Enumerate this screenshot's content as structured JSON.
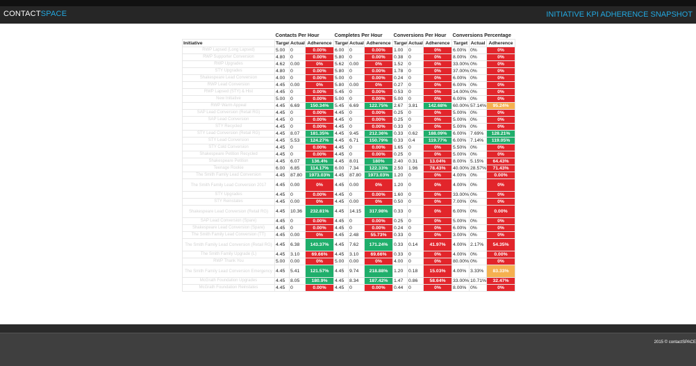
{
  "header": {
    "logo_main": "CONTACT",
    "logo_accent": "SPACE",
    "title": "INITIATIVE KPI ADHERENCE SNAPSHOT"
  },
  "colors": {
    "accent": "#23a9e1",
    "bad": "#e2252b",
    "good": "#1fae6b",
    "warn": "#f5b050"
  },
  "table": {
    "groups": [
      "Contacts Per Hour",
      "Completes Per Hour",
      "Conversions Per Hour",
      "Conversions Percentage"
    ],
    "initiative_header": "Initiative",
    "col_headers": [
      "Target",
      "Actual",
      "Adherence",
      "Target",
      "Actual",
      "Adherence",
      "Target",
      "Actual",
      "Adherence",
      "Target",
      "Actual",
      "Adherence"
    ],
    "rows": [
      {
        "name": "RWP Lapsed (Long Lapsed)",
        "tall": false,
        "cells": [
          "5.00",
          "0",
          "0.00%",
          "6.00",
          "0",
          "0.00%",
          "1.00",
          "0",
          "0%",
          "6.00%",
          "0%",
          "0%"
        ],
        "status": [
          "bad",
          "bad",
          "bad",
          "bad"
        ]
      },
      {
        "name": "RWP Supporter Conversion",
        "tall": false,
        "cells": [
          "4.80",
          "0",
          "0.00%",
          "5.80",
          "0",
          "0.00%",
          "0.38",
          "0",
          "0%",
          "8.00%",
          "0%",
          "0%"
        ],
        "status": [
          "bad",
          "bad",
          "bad",
          "bad"
        ]
      },
      {
        "name": "RWP Upgrades",
        "tall": false,
        "cells": [
          "4.62",
          "0.00",
          "0%",
          "5.62",
          "0.00",
          "0%",
          "1.52",
          "0",
          "0%",
          "33.00%",
          "0%",
          "0%"
        ],
        "status": [
          "bad",
          "bad",
          "bad",
          "bad"
        ]
      },
      {
        "name": "STY Upgrades",
        "tall": false,
        "cells": [
          "4.80",
          "0",
          "0.00%",
          "5.80",
          "0",
          "0.00%",
          "1.78",
          "0",
          "0%",
          "37.00%",
          "0%",
          "0%"
        ],
        "status": [
          "bad",
          "bad",
          "bad",
          "bad"
        ]
      },
      {
        "name": "Shakespeare Lead Conversion",
        "tall": false,
        "cells": [
          "4.00",
          "0",
          "0.00%",
          "5.00",
          "0",
          "0.00%",
          "0.24",
          "0",
          "0%",
          "6.00%",
          "0%",
          "0%"
        ],
        "status": [
          "bad",
          "bad",
          "bad",
          "bad"
        ]
      },
      {
        "name": "RWP Lead Conversion",
        "tall": false,
        "cells": [
          "4.45",
          "0.00",
          "0%",
          "5.80",
          "0.00",
          "0%",
          "0.27",
          "0",
          "0%",
          "6.00%",
          "0%",
          "0%"
        ],
        "status": [
          "bad",
          "bad",
          "bad",
          "bad"
        ]
      },
      {
        "name": "RWP Lapsed (STY) & Hist",
        "tall": false,
        "cells": [
          "4.45",
          "0",
          "0.00%",
          "5.45",
          "0",
          "0.00%",
          "0.53",
          "0",
          "0%",
          "14.00%",
          "0%",
          "0%"
        ],
        "status": [
          "bad",
          "bad",
          "bad",
          "bad"
        ]
      },
      {
        "name": "New Initiative",
        "tall": false,
        "cells": [
          "5.00",
          "0",
          "0.00%",
          "5.00",
          "0",
          "0.00%",
          "5.00",
          "0",
          "0%",
          "6.00%",
          "0%",
          "0%"
        ],
        "status": [
          "bad",
          "bad",
          "bad",
          "bad"
        ]
      },
      {
        "name": "RWP Warm Appeal",
        "tall": false,
        "cells": [
          "4.45",
          "6.69",
          "150.34%",
          "5.45",
          "6.69",
          "122.75%",
          "2.67",
          "3.81",
          "142.68%",
          "60.00%",
          "57.14%",
          "95.24%"
        ],
        "status": [
          "good",
          "good",
          "good",
          "warn"
        ]
      },
      {
        "name": "SAP Lead Conversion (Retail RG)",
        "tall": false,
        "cells": [
          "4.45",
          "0",
          "0.00%",
          "4.45",
          "0",
          "0.00%",
          "0.25",
          "0",
          "0%",
          "5.00%",
          "0%",
          "0%"
        ],
        "status": [
          "bad",
          "bad",
          "bad",
          "bad"
        ]
      },
      {
        "name": "SAP Lead Conversion",
        "tall": false,
        "cells": [
          "4.45",
          "0",
          "0.00%",
          "4.45",
          "0",
          "0.00%",
          "0.25",
          "0",
          "0%",
          "5.00%",
          "0%",
          "0%"
        ],
        "status": [
          "bad",
          "bad",
          "bad",
          "bad"
        ]
      },
      {
        "name": "STY Recycled",
        "tall": false,
        "cells": [
          "4.45",
          "0",
          "0.00%",
          "4.45",
          "0",
          "0.00%",
          "0.33",
          "0",
          "0%",
          "5.00%",
          "0%",
          "0%"
        ],
        "status": [
          "bad",
          "bad",
          "bad",
          "bad"
        ]
      },
      {
        "name": "STY Lead Conversion (Retail RG)",
        "tall": false,
        "cells": [
          "4.45",
          "8.07",
          "181.35%",
          "4.45",
          "9.45",
          "212.36%",
          "0.33",
          "0.62",
          "188.09%",
          "6.00%",
          "7.69%",
          "128.21%"
        ],
        "status": [
          "good",
          "good",
          "good",
          "good"
        ]
      },
      {
        "name": "STY Lead Conversion",
        "tall": false,
        "cells": [
          "4.45",
          "5.53",
          "124.27%",
          "4.45",
          "6.71",
          "150.79%",
          "0.33",
          "0.4",
          "119.77%",
          "6.00%",
          "7.14%",
          "119.05%"
        ],
        "status": [
          "good",
          "good",
          "good",
          "good"
        ]
      },
      {
        "name": "STY Cold Conversion",
        "tall": false,
        "cells": [
          "4.45",
          "0",
          "0.00%",
          "4.45",
          "0",
          "0.00%",
          "1.65",
          "0",
          "0%",
          "5.50%",
          "0%",
          "0%"
        ],
        "status": [
          "bad",
          "bad",
          "bad",
          "bad"
        ]
      },
      {
        "name": "Shakespeare Petition Recycled",
        "tall": false,
        "cells": [
          "4.45",
          "0",
          "0.00%",
          "4.45",
          "0",
          "0.00%",
          "0.25",
          "0",
          "0%",
          "5.00%",
          "0%",
          "0%"
        ],
        "status": [
          "bad",
          "bad",
          "bad",
          "bad"
        ]
      },
      {
        "name": "Shakespeare Petition",
        "tall": false,
        "cells": [
          "4.45",
          "6.07",
          "136.4%",
          "4.45",
          "8.01",
          "180%",
          "2.40",
          "0.31",
          "13.04%",
          "8.00%",
          "5.15%",
          "64.43%"
        ],
        "status": [
          "good",
          "good",
          "bad",
          "bad"
        ]
      },
      {
        "name": "Teenage Rookie",
        "tall": false,
        "cells": [
          "6.00",
          "6.85",
          "114.17%",
          "6.00",
          "7.34",
          "122.33%",
          "2.50",
          "1.96",
          "78.43%",
          "40.00%",
          "28.57%",
          "71.43%"
        ],
        "status": [
          "good",
          "good",
          "bad",
          "bad"
        ]
      },
      {
        "name": "The Smith Family Lead Conversion",
        "tall": false,
        "cells": [
          "4.45",
          "87.80",
          "1973.03%",
          "4.45",
          "87.80",
          "1973.03%",
          "1.20",
          "0",
          "0%",
          "4.00%",
          "0%",
          "0.00%"
        ],
        "status": [
          "good",
          "good",
          "bad",
          "bad"
        ]
      },
      {
        "name": "The Smith Family Lead Conversion 2017",
        "tall": true,
        "cells": [
          "4.45",
          "0.00",
          "0%",
          "4.45",
          "0.00",
          "0%",
          "1.20",
          "0",
          "0%",
          "4.00%",
          "0%",
          "0%"
        ],
        "status": [
          "bad",
          "bad",
          "bad",
          "bad"
        ]
      },
      {
        "name": "STY Upgrades",
        "tall": false,
        "cells": [
          "4.45",
          "0",
          "0.00%",
          "4.45",
          "0",
          "0.00%",
          "1.60",
          "0",
          "0%",
          "33.00%",
          "0%",
          "0%"
        ],
        "status": [
          "bad",
          "bad",
          "bad",
          "bad"
        ]
      },
      {
        "name": "STY Reinstates",
        "tall": false,
        "cells": [
          "4.45",
          "0.00",
          "0%",
          "4.45",
          "0.00",
          "0%",
          "0.50",
          "0",
          "0%",
          "7.00%",
          "0%",
          "0%"
        ],
        "status": [
          "bad",
          "bad",
          "bad",
          "bad"
        ]
      },
      {
        "name": "Shakespeare Lead Conversion (Retail RG)",
        "tall": true,
        "cells": [
          "4.45",
          "10.36",
          "232.81%",
          "4.45",
          "14.15",
          "317.98%",
          "0.33",
          "0",
          "0%",
          "6.00%",
          "0%",
          "0.00%"
        ],
        "status": [
          "good",
          "good",
          "bad",
          "bad"
        ]
      },
      {
        "name": "SAP Lead Conversion (Spare)",
        "tall": false,
        "cells": [
          "4.45",
          "0",
          "0.00%",
          "4.45",
          "0",
          "0.00%",
          "0.25",
          "0",
          "0%",
          "5.00%",
          "0%",
          "0%"
        ],
        "status": [
          "bad",
          "bad",
          "bad",
          "bad"
        ]
      },
      {
        "name": "Shakespeare Lead Conversion (Spare)",
        "tall": false,
        "cells": [
          "4.45",
          "0",
          "0.00%",
          "4.45",
          "0",
          "0.00%",
          "0.24",
          "0",
          "0%",
          "6.00%",
          "0%",
          "0%"
        ],
        "status": [
          "bad",
          "bad",
          "bad",
          "bad"
        ]
      },
      {
        "name": "The Smith Family Lead Conversion (TT)",
        "tall": false,
        "cells": [
          "4.45",
          "0.00",
          "0%",
          "4.45",
          "2.48",
          "55.73%",
          "0.33",
          "0",
          "0%",
          "3.00%",
          "0%",
          "0%"
        ],
        "status": [
          "bad",
          "bad",
          "bad",
          "bad"
        ]
      },
      {
        "name": "The Smith Family Lead Conversion (Retail RG)",
        "tall": true,
        "cells": [
          "4.45",
          "6.38",
          "143.37%",
          "4.45",
          "7.62",
          "171.24%",
          "0.33",
          "0.14",
          "41.97%",
          "4.00%",
          "2.17%",
          "54.35%"
        ],
        "status": [
          "good",
          "good",
          "bad",
          "bad"
        ]
      },
      {
        "name": "The Smith Family Upgrade (L)",
        "tall": false,
        "cells": [
          "4.45",
          "3.10",
          "69.66%",
          "4.45",
          "3.10",
          "69.66%",
          "0.33",
          "0",
          "0%",
          "4.00%",
          "0%",
          "0.00%"
        ],
        "status": [
          "bad",
          "bad",
          "bad",
          "bad"
        ]
      },
      {
        "name": "RWP Thank You",
        "tall": false,
        "cells": [
          "5.00",
          "0.00",
          "0%",
          "5.00",
          "0.00",
          "0%",
          "4.00",
          "0",
          "0%",
          "80.00%",
          "0%",
          "0%"
        ],
        "status": [
          "bad",
          "bad",
          "bad",
          "bad"
        ]
      },
      {
        "name": "The Smith Family Lead Conversion Emergency",
        "tall": true,
        "cells": [
          "4.45",
          "5.41",
          "121.57%",
          "4.45",
          "9.74",
          "218.88%",
          "1.20",
          "0.18",
          "15.03%",
          "4.00%",
          "3.33%",
          "83.33%"
        ],
        "status": [
          "good",
          "good",
          "bad",
          "warn"
        ]
      },
      {
        "name": "McGrath Foundation Upgrades",
        "tall": false,
        "cells": [
          "4.45",
          "8.05",
          "180.9%",
          "4.45",
          "8.34",
          "187.42%",
          "1.47",
          "0.86",
          "58.64%",
          "33.00%",
          "10.71%",
          "32.47%"
        ],
        "status": [
          "good",
          "good",
          "bad",
          "bad"
        ]
      },
      {
        "name": "McGrath Foundation Reinstates",
        "tall": false,
        "cells": [
          "4.45",
          "0",
          "0.00%",
          "4.45",
          "0",
          "0.00%",
          "0.44",
          "0",
          "0%",
          "8.00%",
          "0%",
          "0%"
        ],
        "status": [
          "bad",
          "bad",
          "bad",
          "bad"
        ]
      }
    ]
  },
  "footer": {
    "copyright": "2015 © contactSPACE"
  }
}
